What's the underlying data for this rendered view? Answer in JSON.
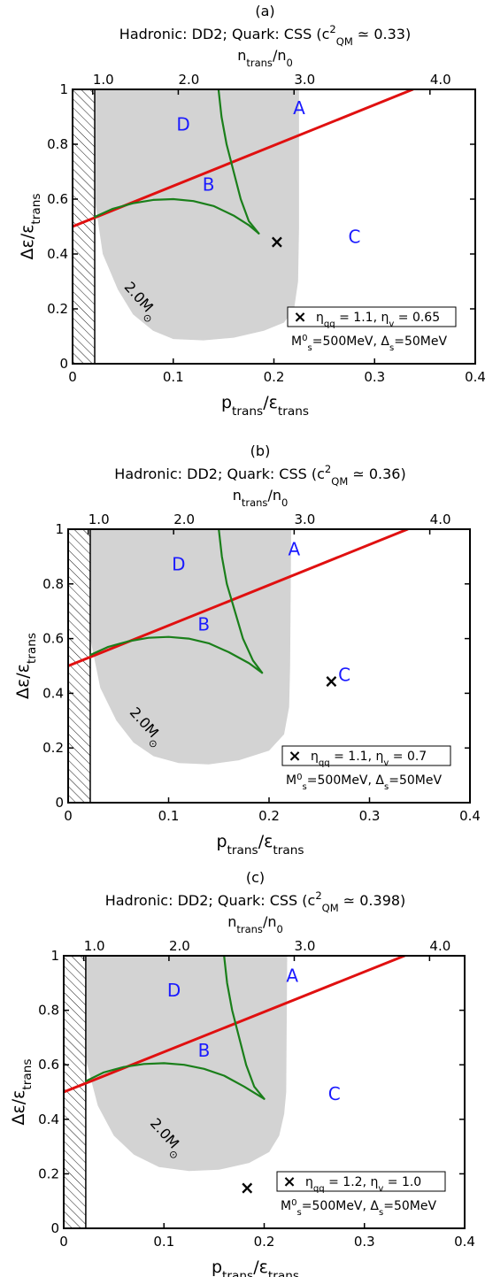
{
  "chart_data": [
    {
      "type": "line",
      "panel_label": "(a)",
      "title": "Hadronic: DD2; Quark: CSS (c²QM ≃ 0.33)",
      "xlabel": "ptrans/εtrans",
      "ylabel": "Δε/εtrans",
      "top_xlabel": "ntrans/n0",
      "xlim": [
        0,
        0.4
      ],
      "ylim": [
        0,
        1
      ],
      "x_ticks": [
        "0",
        "0.1",
        "0.2",
        "0.3",
        "0.4"
      ],
      "y_ticks": [
        "0",
        "0.2",
        "0.4",
        "0.6",
        "0.8",
        "1"
      ],
      "top_ticks": [
        {
          "label": "1.0",
          "x": 0.02
        },
        {
          "label": "2.0",
          "x": 0.105
        },
        {
          "label": "3.0",
          "x": 0.22
        },
        {
          "label": "4.0",
          "x": 0.355
        }
      ],
      "hatched_region": {
        "x": [
          0,
          0.022
        ],
        "y": [
          0,
          1
        ]
      },
      "shaded_region": {
        "label": "2.0M⊙",
        "boundary": [
          [
            0.022,
            1.0
          ],
          [
            0.022,
            0.6
          ],
          [
            0.03,
            0.4
          ],
          [
            0.045,
            0.27
          ],
          [
            0.06,
            0.18
          ],
          [
            0.08,
            0.12
          ],
          [
            0.1,
            0.09
          ],
          [
            0.13,
            0.085
          ],
          [
            0.16,
            0.095
          ],
          [
            0.19,
            0.12
          ],
          [
            0.21,
            0.15
          ],
          [
            0.22,
            0.2
          ],
          [
            0.224,
            0.3
          ],
          [
            0.225,
            0.5
          ],
          [
            0.225,
            1.0
          ]
        ]
      },
      "series": [
        {
          "color": "#e01010",
          "points": [
            [
              0,
              0.5
            ],
            [
              0.338,
              1.0
            ]
          ]
        },
        {
          "color": "#1a7f1a",
          "points": [
            [
              0.022,
              0.535
            ],
            [
              0.04,
              0.565
            ],
            [
              0.06,
              0.585
            ],
            [
              0.08,
              0.597
            ],
            [
              0.1,
              0.6
            ],
            [
              0.12,
              0.593
            ],
            [
              0.14,
              0.575
            ],
            [
              0.16,
              0.54
            ],
            [
              0.175,
              0.505
            ],
            [
              0.185,
              0.475
            ]
          ]
        },
        {
          "color": "#1a7f1a",
          "points": [
            [
              0.145,
              1.0
            ],
            [
              0.148,
              0.9
            ],
            [
              0.153,
              0.8
            ],
            [
              0.16,
              0.7
            ],
            [
              0.167,
              0.6
            ],
            [
              0.175,
              0.52
            ],
            [
              0.185,
              0.475
            ]
          ]
        }
      ],
      "regions": [
        {
          "label": "A",
          "x": 0.225,
          "y": 0.91
        },
        {
          "label": "B",
          "x": 0.135,
          "y": 0.63
        },
        {
          "label": "C",
          "x": 0.28,
          "y": 0.44
        },
        {
          "label": "D",
          "x": 0.11,
          "y": 0.85
        },
        {
          "label": "2.0M⊙",
          "x": 0.065,
          "y": 0.22
        }
      ],
      "marker": {
        "symbol": "×",
        "x": 0.203,
        "y": 0.445
      },
      "legend": {
        "position": "bottom-right",
        "entry": "ηqq = 1.1, ηv = 0.65",
        "note": "M⁰s=500MeV, Δs=50MeV"
      }
    },
    {
      "type": "line",
      "panel_label": "(b)",
      "title": "Hadronic: DD2; Quark: CSS (c²QM ≃ 0.36)",
      "xlabel": "ptrans/εtrans",
      "ylabel": "Δε/εtrans",
      "top_xlabel": "ntrans/n0",
      "xlim": [
        0,
        0.4
      ],
      "ylim": [
        0,
        1
      ],
      "x_ticks": [
        "0",
        "0.1",
        "0.2",
        "0.3",
        "0.4"
      ],
      "y_ticks": [
        "0",
        "0.2",
        "0.4",
        "0.6",
        "0.8",
        "1"
      ],
      "top_ticks": [
        {
          "label": "1.0",
          "x": 0.02
        },
        {
          "label": "2.0",
          "x": 0.105
        },
        {
          "label": "3.0",
          "x": 0.225
        },
        {
          "label": "4.0",
          "x": 0.36
        }
      ],
      "hatched_region": {
        "x": [
          0,
          0.022
        ],
        "y": [
          0,
          1
        ]
      },
      "shaded_region": {
        "label": "2.0M⊙",
        "boundary": [
          [
            0.022,
            1.0
          ],
          [
            0.022,
            0.6
          ],
          [
            0.032,
            0.42
          ],
          [
            0.048,
            0.3
          ],
          [
            0.065,
            0.22
          ],
          [
            0.085,
            0.17
          ],
          [
            0.11,
            0.145
          ],
          [
            0.14,
            0.14
          ],
          [
            0.17,
            0.155
          ],
          [
            0.2,
            0.19
          ],
          [
            0.215,
            0.25
          ],
          [
            0.22,
            0.35
          ],
          [
            0.221,
            0.5
          ],
          [
            0.222,
            1.0
          ]
        ]
      },
      "series": [
        {
          "color": "#e01010",
          "points": [
            [
              0,
              0.5
            ],
            [
              0.338,
              1.0
            ]
          ]
        },
        {
          "color": "#1a7f1a",
          "points": [
            [
              0.022,
              0.54
            ],
            [
              0.04,
              0.57
            ],
            [
              0.06,
              0.59
            ],
            [
              0.08,
              0.603
            ],
            [
              0.1,
              0.606
            ],
            [
              0.12,
              0.6
            ],
            [
              0.14,
              0.583
            ],
            [
              0.16,
              0.55
            ],
            [
              0.18,
              0.51
            ],
            [
              0.193,
              0.475
            ]
          ]
        },
        {
          "color": "#1a7f1a",
          "points": [
            [
              0.15,
              1.0
            ],
            [
              0.153,
              0.9
            ],
            [
              0.158,
              0.8
            ],
            [
              0.166,
              0.7
            ],
            [
              0.174,
              0.6
            ],
            [
              0.184,
              0.52
            ],
            [
              0.193,
              0.475
            ]
          ]
        }
      ],
      "regions": [
        {
          "label": "A",
          "x": 0.225,
          "y": 0.905
        },
        {
          "label": "B",
          "x": 0.135,
          "y": 0.63
        },
        {
          "label": "C",
          "x": 0.275,
          "y": 0.445
        },
        {
          "label": "D",
          "x": 0.11,
          "y": 0.85
        },
        {
          "label": "2.0M⊙",
          "x": 0.075,
          "y": 0.27
        }
      ],
      "marker": {
        "symbol": "×",
        "x": 0.262,
        "y": 0.445
      },
      "legend": {
        "position": "bottom-right",
        "entry": "ηqq = 1.1, ηv = 0.7",
        "note": "M⁰s=500MeV, Δs=50MeV"
      }
    },
    {
      "type": "line",
      "panel_label": "(c)",
      "title": "Hadronic: DD2; Quark: CSS (c²QM ≃ 0.398)",
      "xlabel": "ptrans/εtrans",
      "ylabel": "Δε/εtrans",
      "top_xlabel": "ntrans/n0",
      "xlim": [
        0,
        0.4
      ],
      "ylim": [
        0,
        1
      ],
      "x_ticks": [
        "0",
        "0.1",
        "0.2",
        "0.3",
        "0.4"
      ],
      "y_ticks": [
        "0",
        "0.2",
        "0.4",
        "0.6",
        "0.8",
        "1"
      ],
      "top_ticks": [
        {
          "label": "1.0",
          "x": 0.02
        },
        {
          "label": "2.0",
          "x": 0.105
        },
        {
          "label": "3.0",
          "x": 0.23
        },
        {
          "label": "4.0",
          "x": 0.365
        }
      ],
      "hatched_region": {
        "x": [
          0,
          0.022
        ],
        "y": [
          0,
          1
        ]
      },
      "shaded_region": {
        "label": "2.0M⊙",
        "boundary": [
          [
            0.022,
            1.0
          ],
          [
            0.022,
            0.62
          ],
          [
            0.034,
            0.45
          ],
          [
            0.05,
            0.34
          ],
          [
            0.07,
            0.27
          ],
          [
            0.095,
            0.225
          ],
          [
            0.125,
            0.21
          ],
          [
            0.155,
            0.215
          ],
          [
            0.185,
            0.24
          ],
          [
            0.205,
            0.28
          ],
          [
            0.215,
            0.34
          ],
          [
            0.22,
            0.42
          ],
          [
            0.222,
            0.5
          ],
          [
            0.223,
            1.0
          ]
        ]
      },
      "series": [
        {
          "color": "#e01010",
          "points": [
            [
              0,
              0.5
            ],
            [
              0.34,
              1.0
            ]
          ]
        },
        {
          "color": "#1a7f1a",
          "points": [
            [
              0.022,
              0.54
            ],
            [
              0.04,
              0.572
            ],
            [
              0.06,
              0.592
            ],
            [
              0.08,
              0.603
            ],
            [
              0.1,
              0.606
            ],
            [
              0.12,
              0.6
            ],
            [
              0.14,
              0.585
            ],
            [
              0.16,
              0.56
            ],
            [
              0.18,
              0.52
            ],
            [
              0.2,
              0.475
            ]
          ]
        },
        {
          "color": "#1a7f1a",
          "points": [
            [
              0.16,
              1.0
            ],
            [
              0.163,
              0.9
            ],
            [
              0.168,
              0.8
            ],
            [
              0.175,
              0.7
            ],
            [
              0.182,
              0.6
            ],
            [
              0.19,
              0.52
            ],
            [
              0.2,
              0.475
            ]
          ]
        }
      ],
      "regions": [
        {
          "label": "A",
          "x": 0.228,
          "y": 0.905
        },
        {
          "label": "B",
          "x": 0.14,
          "y": 0.63
        },
        {
          "label": "C",
          "x": 0.27,
          "y": 0.47
        },
        {
          "label": "D",
          "x": 0.11,
          "y": 0.85
        },
        {
          "label": "2.0M⊙",
          "x": 0.1,
          "y": 0.325
        }
      ],
      "marker": {
        "symbol": "×",
        "x": 0.183,
        "y": 0.15
      },
      "legend": {
        "position": "bottom-right",
        "entry": "ηqq = 1.2, ηv = 1.0",
        "note": "M⁰s=500MeV, Δs=50MeV"
      }
    }
  ]
}
